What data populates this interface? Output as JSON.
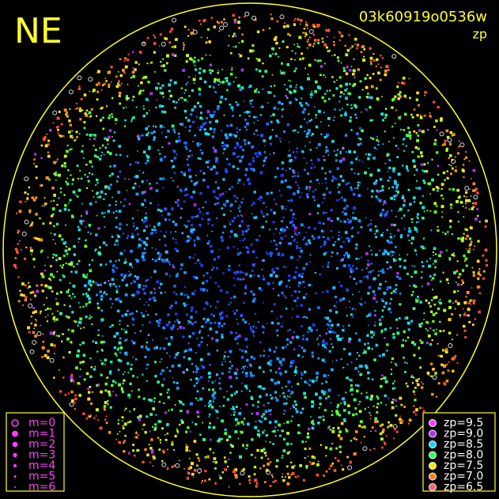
{
  "corner_label": "NE",
  "frame_id": "03k60919o0536w",
  "quantity": "zp",
  "magnitude_legend": [
    "m=0",
    "m=1",
    "m=2",
    "m=3",
    "m=4",
    "m=5",
    "m=6"
  ],
  "zp_legend": [
    {
      "label": "zp=9.5",
      "color": "#ff40ff"
    },
    {
      "label": "zp=9.0",
      "color": "#b030f0"
    },
    {
      "label": "zp=8.5",
      "color": "#20d0ff"
    },
    {
      "label": "zp=8.0",
      "color": "#30ff60"
    },
    {
      "label": "zp=7.5",
      "color": "#ffe020"
    },
    {
      "label": "zp=7.0",
      "color": "#ff8020"
    },
    {
      "label": "zp=6.5",
      "color": "#ff6070"
    }
  ]
}
